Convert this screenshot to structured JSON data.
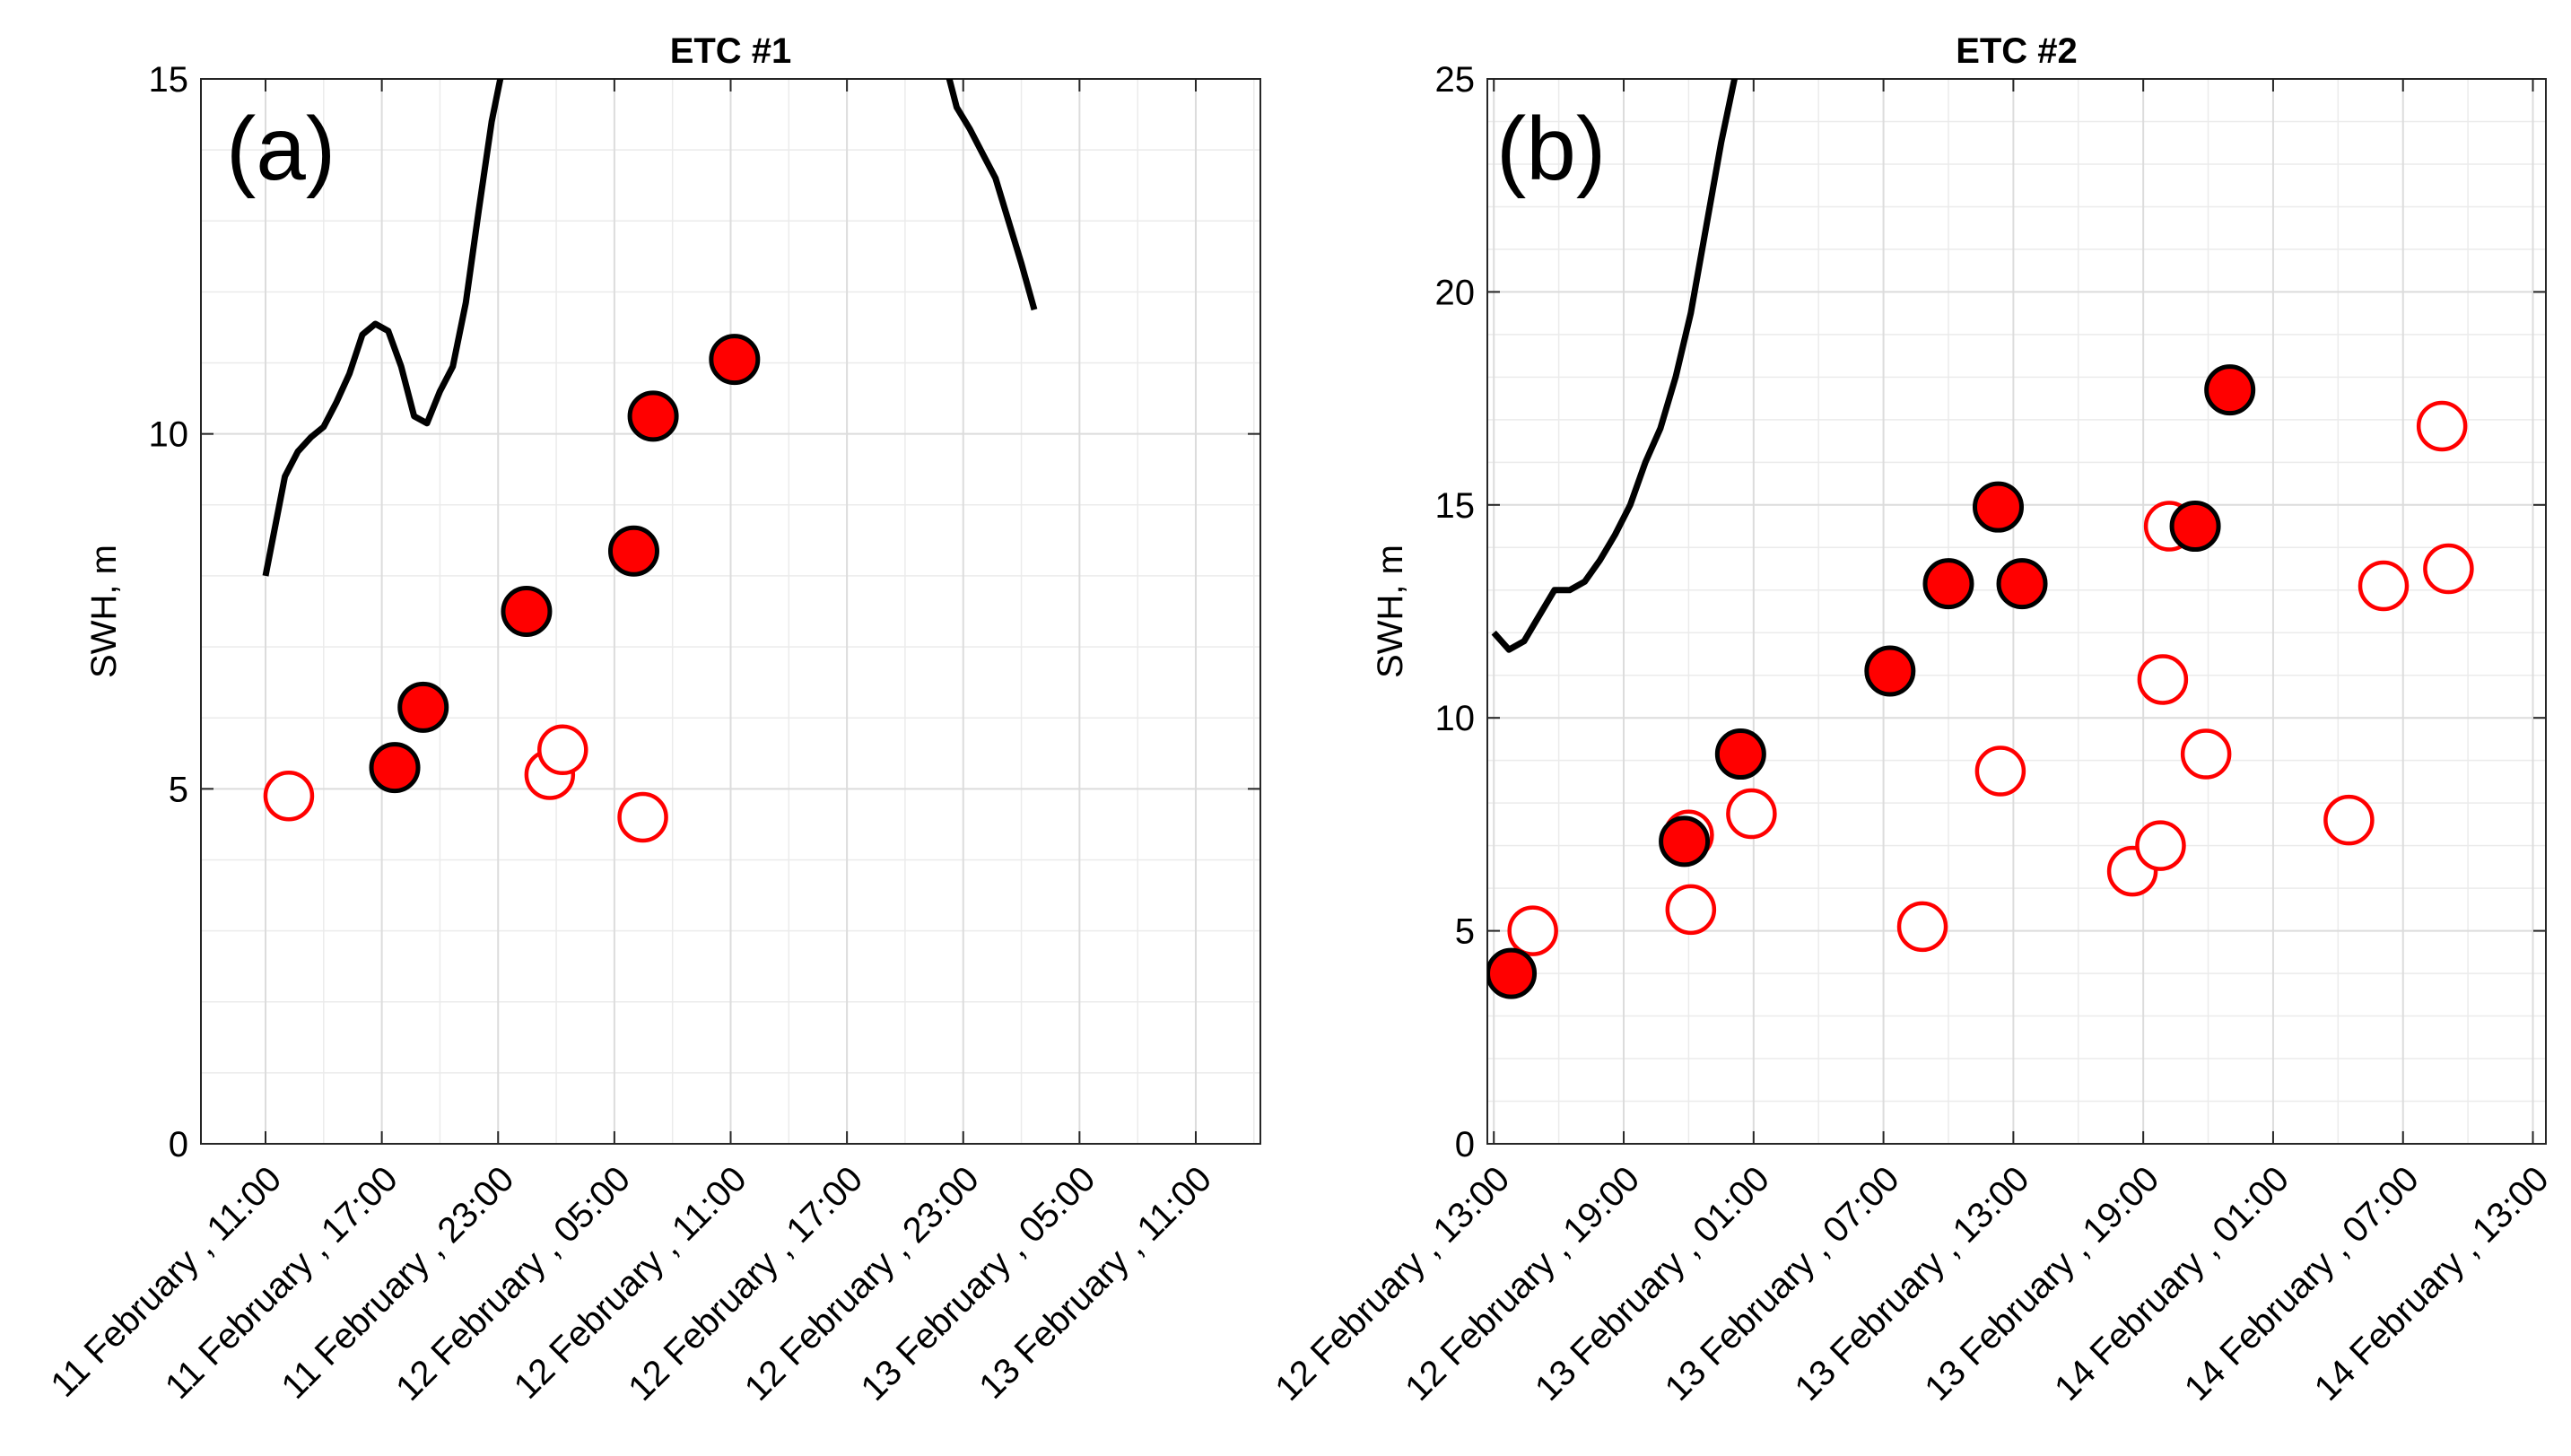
{
  "chart_data": [
    {
      "type": "line+scatter",
      "panel_label": "(a)",
      "title": "ETC #1",
      "ylabel": "SWH, m",
      "xlabel": "",
      "xlim_hours": [
        -5,
        77
      ],
      "ylim": [
        0,
        15
      ],
      "yticks": [
        0,
        5,
        10,
        15
      ],
      "grid": true,
      "xticks": [
        {
          "hour": 0,
          "label": "11 February , 11:00"
        },
        {
          "hour": 9,
          "label": "11 February , 17:00"
        },
        {
          "hour": 18,
          "label": "11 February , 23:00"
        },
        {
          "hour": 27,
          "label": "12 February , 05:00"
        },
        {
          "hour": 36,
          "label": "12 February , 11:00"
        },
        {
          "hour": 45,
          "label": "12 February , 17:00"
        },
        {
          "hour": 54,
          "label": "12 February , 23:00"
        },
        {
          "hour": 63,
          "label": "13 February , 05:00"
        },
        {
          "hour": 72,
          "label": "13 February , 11:00"
        }
      ],
      "line": [
        [
          0,
          8.0
        ],
        [
          1.5,
          9.4
        ],
        [
          2.5,
          9.75
        ],
        [
          3.5,
          9.95
        ],
        [
          4.5,
          10.1
        ],
        [
          5.5,
          10.45
        ],
        [
          6.5,
          10.85
        ],
        [
          7.5,
          11.4
        ],
        [
          8.5,
          11.55
        ],
        [
          9.5,
          11.45
        ],
        [
          10.5,
          10.95
        ],
        [
          11.5,
          10.25
        ],
        [
          12.5,
          10.15
        ],
        [
          13.5,
          10.6
        ],
        [
          14.5,
          10.95
        ],
        [
          15.5,
          11.85
        ],
        [
          16.5,
          13.15
        ],
        [
          17.5,
          14.4
        ],
        [
          18.5,
          15.3
        ]
      ],
      "line2": [
        [
          52.5,
          15.3
        ],
        [
          53.5,
          14.6
        ],
        [
          54.5,
          14.3
        ],
        [
          55.5,
          13.95
        ],
        [
          56.5,
          13.6
        ],
        [
          57.5,
          13.0
        ],
        [
          58.5,
          12.4
        ],
        [
          59.5,
          11.75
        ]
      ],
      "filled_points": [
        [
          10.0,
          5.3
        ],
        [
          12.2,
          6.15
        ],
        [
          20.2,
          7.5
        ],
        [
          28.5,
          8.35
        ],
        [
          30.0,
          10.25
        ],
        [
          36.3,
          11.05
        ]
      ],
      "open_points": [
        [
          1.8,
          4.9
        ],
        [
          22.0,
          5.2
        ],
        [
          23.0,
          5.55
        ],
        [
          29.2,
          4.6
        ]
      ]
    },
    {
      "type": "line+scatter",
      "panel_label": "(b)",
      "title": "ETC #2",
      "ylabel": "SWH, m",
      "xlabel": "",
      "xlim_hours": [
        -0.3,
        48.6
      ],
      "ylim": [
        0,
        25
      ],
      "yticks": [
        0,
        5,
        10,
        15,
        20,
        25
      ],
      "grid": true,
      "xticks": [
        {
          "hour": 0,
          "label": "12 February , 13:00"
        },
        {
          "hour": 6,
          "label": "12 February , 19:00"
        },
        {
          "hour": 12,
          "label": "13 February , 01:00"
        },
        {
          "hour": 18,
          "label": "13 February , 07:00"
        },
        {
          "hour": 24,
          "label": "13 February , 13:00"
        },
        {
          "hour": 30,
          "label": "13 February , 19:00"
        },
        {
          "hour": 36,
          "label": "14 February , 01:00"
        },
        {
          "hour": 42,
          "label": "14 February , 07:00"
        },
        {
          "hour": 48,
          "label": "14 February , 13:00"
        }
      ],
      "line": [
        [
          0.0,
          12.0
        ],
        [
          0.7,
          11.6
        ],
        [
          1.4,
          11.8
        ],
        [
          2.1,
          12.4
        ],
        [
          2.8,
          13.0
        ],
        [
          3.5,
          13.0
        ],
        [
          4.2,
          13.2
        ],
        [
          4.9,
          13.7
        ],
        [
          5.6,
          14.3
        ],
        [
          6.3,
          15.0
        ],
        [
          7.0,
          16.0
        ],
        [
          7.7,
          16.8
        ],
        [
          8.4,
          18.0
        ],
        [
          9.1,
          19.5
        ],
        [
          9.8,
          21.5
        ],
        [
          10.5,
          23.5
        ],
        [
          11.2,
          25.2
        ]
      ],
      "filled_points": [
        [
          0.8,
          4.0
        ],
        [
          8.8,
          7.1
        ],
        [
          11.4,
          9.15
        ],
        [
          18.3,
          11.1
        ],
        [
          21.0,
          13.15
        ],
        [
          23.3,
          14.95
        ],
        [
          24.4,
          13.15
        ],
        [
          32.4,
          14.5
        ],
        [
          34.0,
          17.7
        ]
      ],
      "open_points": [
        [
          1.8,
          5.0
        ],
        [
          9.0,
          7.25
        ],
        [
          9.1,
          5.5
        ],
        [
          11.9,
          7.75
        ],
        [
          19.8,
          5.1
        ],
        [
          23.4,
          8.75
        ],
        [
          29.5,
          6.4
        ],
        [
          30.8,
          7.0
        ],
        [
          30.9,
          10.9
        ],
        [
          31.2,
          14.5
        ],
        [
          32.9,
          9.15
        ],
        [
          39.5,
          7.6
        ],
        [
          41.1,
          13.1
        ],
        [
          43.8,
          16.85
        ],
        [
          44.1,
          13.5
        ]
      ]
    }
  ]
}
